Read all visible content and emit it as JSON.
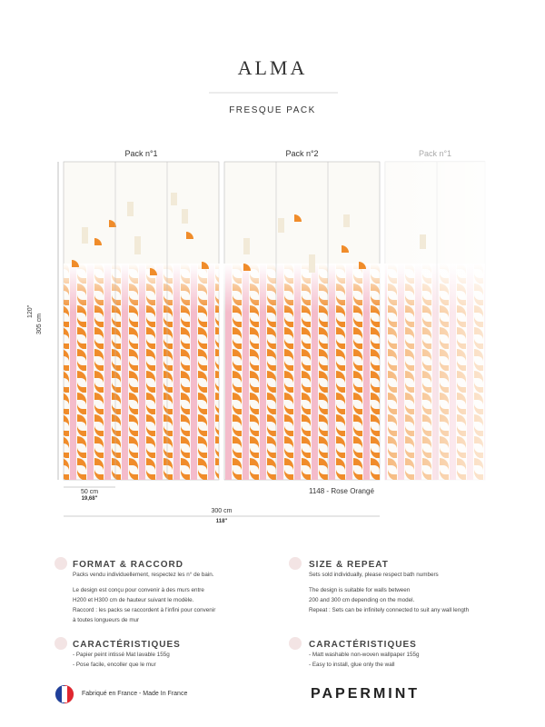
{
  "header": {
    "title": "ALMA",
    "subtitle": "FRESQUE PACK"
  },
  "illustration": {
    "packs": [
      "Pack n°1",
      "Pack n°2",
      "Pack n°1"
    ],
    "height_in": "120\"",
    "height_cm": "305 cm",
    "strip_cm": "50 cm",
    "strip_in": "19,68\"",
    "reference": "1148 - Rose Orangé",
    "width_cm": "300 cm",
    "width_in": "118\""
  },
  "sections": [
    {
      "title": "FORMAT & RACCORD",
      "lines": [
        "Packs vendu individuellement, respectez les n° de bain.",
        "Le design est conçu pour convenir à des murs entre",
        "H200 et H300 cm de hauteur suivant le modèle.",
        "Raccord : les packs se raccordent à l'infini pour convenir",
        "à toutes longueurs de mur"
      ]
    },
    {
      "title": "SIZE & REPEAT",
      "lines": [
        "Sets sold individually, please respect bath numbers",
        "The design is suitable for walls between",
        "200 and 300 cm depending on the model.",
        "Repeat : Sets can be infinitely connected to suit any wall length"
      ]
    },
    {
      "title": "CARACTÉRISTIQUES",
      "lines": [
        "- Papier peint intissé Mat lavable 155g",
        "- Pose facile, encoller que le mur"
      ]
    },
    {
      "title": "CARACTÉRISTIQUES",
      "lines": [
        "- Matt washable non-woven wallpaper 155g",
        "- Easy to install, glue only the wall"
      ]
    }
  ],
  "footer": {
    "made_in": "Fabriqué en France - Made In France",
    "brand": "PAPERMINT"
  }
}
